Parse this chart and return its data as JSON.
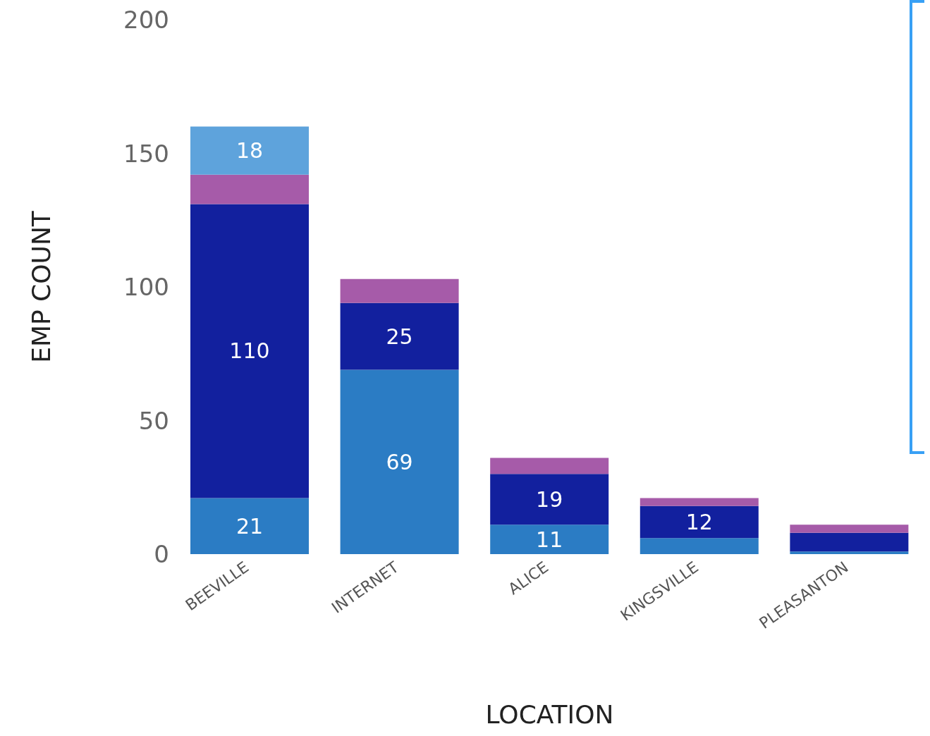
{
  "chart_data": {
    "type": "bar",
    "stacked": true,
    "xlabel": "LOCATION",
    "ylabel": "EMP COUNT",
    "categories": [
      "BEEVILLE",
      "INTERNET",
      "ALICE",
      "KINGSVILLE",
      "PLEASANTON"
    ],
    "ylim": [
      0,
      200
    ],
    "yticks": [
      0,
      50,
      100,
      150,
      200
    ],
    "grid": false,
    "legend": false,
    "series": [
      {
        "color": "#2b7cc4",
        "values": [
          21,
          69,
          11,
          6,
          1
        ],
        "value_labels": [
          "21",
          "69",
          "11",
          null,
          null
        ]
      },
      {
        "color": "#12209e",
        "values": [
          110,
          25,
          19,
          12,
          7
        ],
        "value_labels": [
          "110",
          "25",
          "19",
          "12",
          null
        ]
      },
      {
        "color": "#a65ba9",
        "values": [
          11,
          9,
          6,
          3,
          3
        ],
        "value_labels": [
          null,
          null,
          null,
          null,
          null
        ]
      },
      {
        "color": "#5ea3dc",
        "values": [
          18,
          null,
          null,
          null,
          null
        ],
        "value_labels": [
          "18",
          null,
          null,
          null,
          null
        ]
      }
    ]
  }
}
